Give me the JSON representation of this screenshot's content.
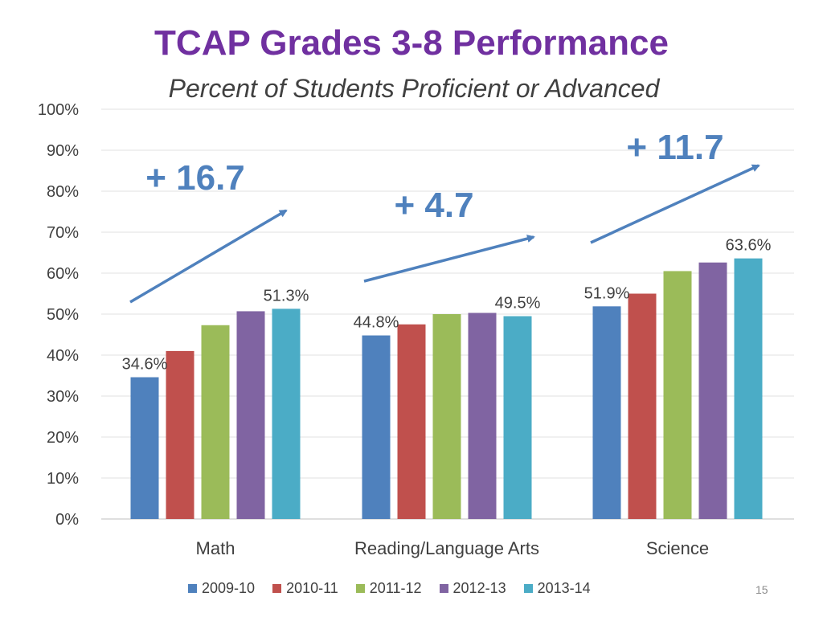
{
  "slide": {
    "title": "TCAP Grades 3-8 Performance",
    "subtitle": "Percent of Students Proficient or Advanced",
    "slide_number": "15"
  },
  "colors": {
    "title": "#7030a0",
    "annotation": "#4f81bd",
    "series": [
      "#4f81bd",
      "#c0504d",
      "#9bbb59",
      "#8064a2",
      "#4bacc6"
    ]
  },
  "chart_data": {
    "type": "bar",
    "title": "TCAP Grades 3-8 Performance",
    "subtitle": "Percent of Students Proficient or Advanced",
    "xlabel": "",
    "ylabel": "",
    "ylim": [
      0,
      100
    ],
    "y_ticks": [
      "0%",
      "10%",
      "20%",
      "30%",
      "40%",
      "50%",
      "60%",
      "70%",
      "80%",
      "90%",
      "100%"
    ],
    "grid": true,
    "legend_position": "bottom",
    "categories": [
      "Math",
      "Reading/Language Arts",
      "Science"
    ],
    "series": [
      {
        "name": "2009-10",
        "values": [
          34.6,
          44.8,
          51.9
        ]
      },
      {
        "name": "2010-11",
        "values": [
          41.0,
          47.5,
          55.0
        ]
      },
      {
        "name": "2011-12",
        "values": [
          47.3,
          50.0,
          60.5
        ]
      },
      {
        "name": "2012-13",
        "values": [
          50.7,
          50.3,
          62.6
        ]
      },
      {
        "name": "2013-14",
        "values": [
          51.3,
          49.5,
          63.6
        ]
      }
    ],
    "data_labels": [
      {
        "category": "Math",
        "series": "2009-10",
        "text": "34.6%"
      },
      {
        "category": "Math",
        "series": "2013-14",
        "text": "51.3%"
      },
      {
        "category": "Reading/Language Arts",
        "series": "2009-10",
        "text": "44.8%"
      },
      {
        "category": "Reading/Language Arts",
        "series": "2013-14",
        "text": "49.5%"
      },
      {
        "category": "Science",
        "series": "2009-10",
        "text": "51.9%"
      },
      {
        "category": "Science",
        "series": "2013-14",
        "text": "63.6%"
      }
    ],
    "annotations": [
      {
        "category": "Math",
        "text": "+ 16.7"
      },
      {
        "category": "Reading/Language Arts",
        "text": "+ 4.7"
      },
      {
        "category": "Science",
        "text": "+ 11.7"
      }
    ]
  }
}
